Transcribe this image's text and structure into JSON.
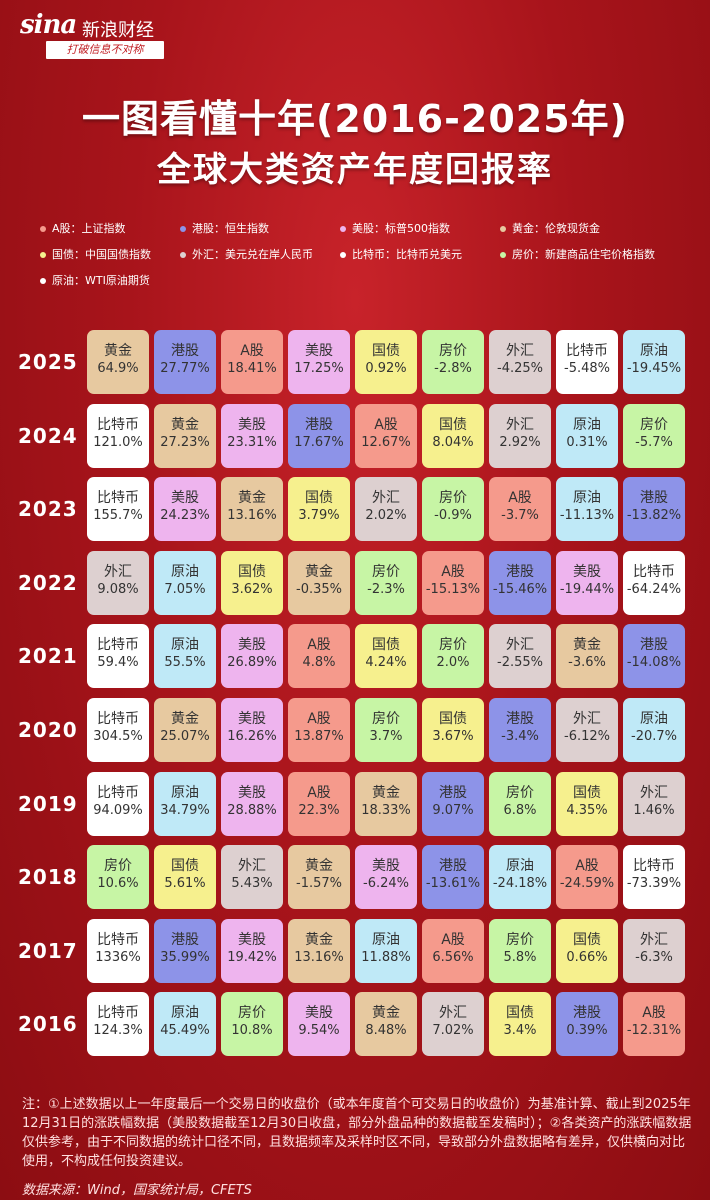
{
  "brand": {
    "mark": "sina",
    "name": "新浪财经",
    "slogan": "打破信息不对称"
  },
  "title": {
    "line1": "一图看懂十年(2016-2025年)",
    "line2": "全球大类资产年度回报率"
  },
  "colors": {
    "A股": "#f59a8c",
    "港股": "#8d93e8",
    "美股": "#eeb4ee",
    "黄金": "#e7c9a0",
    "国债": "#f6f08e",
    "外汇": "#ddd0d0",
    "比特币": "#ffffff",
    "房价": "#c7f5a5",
    "原油": "#bfe9f7"
  },
  "legend": [
    {
      "label": "A股：上证指数",
      "dot": "#f59a8c"
    },
    {
      "label": "港股：恒生指数",
      "dot": "#8d93e8"
    },
    {
      "label": "美股：标普500指数",
      "dot": "#eeb4ee"
    },
    {
      "label": "黄金：伦敦现货金",
      "dot": "#e7c9a0"
    },
    {
      "label": "国债：中国国债指数",
      "dot": "#f6f08e"
    },
    {
      "label": "外汇：美元兑在岸人民币",
      "dot": "#ddd0d0"
    },
    {
      "label": "比特币：比特币兑美元",
      "dot": "#ffffff"
    },
    {
      "label": "房价：新建商品住宅价格指数",
      "dot": "#c7f5a5"
    },
    {
      "label": "原油：WTI原油期货",
      "dot": "#ffffff"
    }
  ],
  "rows": [
    {
      "year": "2025",
      "cells": [
        [
          "黄金",
          "64.9%"
        ],
        [
          "港股",
          "27.77%"
        ],
        [
          "A股",
          "18.41%"
        ],
        [
          "美股",
          "17.25%"
        ],
        [
          "国债",
          "0.92%"
        ],
        [
          "房价",
          "-2.8%"
        ],
        [
          "外汇",
          "-4.25%"
        ],
        [
          "比特币",
          "-5.48%"
        ],
        [
          "原油",
          "-19.45%"
        ]
      ]
    },
    {
      "year": "2024",
      "cells": [
        [
          "比特币",
          "121.0%"
        ],
        [
          "黄金",
          "27.23%"
        ],
        [
          "美股",
          "23.31%"
        ],
        [
          "港股",
          "17.67%"
        ],
        [
          "A股",
          "12.67%"
        ],
        [
          "国债",
          "8.04%"
        ],
        [
          "外汇",
          "2.92%"
        ],
        [
          "原油",
          "0.31%"
        ],
        [
          "房价",
          "-5.7%"
        ]
      ]
    },
    {
      "year": "2023",
      "cells": [
        [
          "比特币",
          "155.7%"
        ],
        [
          "美股",
          "24.23%"
        ],
        [
          "黄金",
          "13.16%"
        ],
        [
          "国债",
          "3.79%"
        ],
        [
          "外汇",
          "2.02%"
        ],
        [
          "房价",
          "-0.9%"
        ],
        [
          "A股",
          "-3.7%"
        ],
        [
          "原油",
          "-11.13%"
        ],
        [
          "港股",
          "-13.82%"
        ]
      ]
    },
    {
      "year": "2022",
      "cells": [
        [
          "外汇",
          "9.08%"
        ],
        [
          "原油",
          "7.05%"
        ],
        [
          "国债",
          "3.62%"
        ],
        [
          "黄金",
          "-0.35%"
        ],
        [
          "房价",
          "-2.3%"
        ],
        [
          "A股",
          "-15.13%"
        ],
        [
          "港股",
          "-15.46%"
        ],
        [
          "美股",
          "-19.44%"
        ],
        [
          "比特币",
          "-64.24%"
        ]
      ]
    },
    {
      "year": "2021",
      "cells": [
        [
          "比特币",
          "59.4%"
        ],
        [
          "原油",
          "55.5%"
        ],
        [
          "美股",
          "26.89%"
        ],
        [
          "A股",
          "4.8%"
        ],
        [
          "国债",
          "4.24%"
        ],
        [
          "房价",
          "2.0%"
        ],
        [
          "外汇",
          "-2.55%"
        ],
        [
          "黄金",
          "-3.6%"
        ],
        [
          "港股",
          "-14.08%"
        ]
      ]
    },
    {
      "year": "2020",
      "cells": [
        [
          "比特币",
          "304.5%"
        ],
        [
          "黄金",
          "25.07%"
        ],
        [
          "美股",
          "16.26%"
        ],
        [
          "A股",
          "13.87%"
        ],
        [
          "房价",
          "3.7%"
        ],
        [
          "国债",
          "3.67%"
        ],
        [
          "港股",
          "-3.4%"
        ],
        [
          "外汇",
          "-6.12%"
        ],
        [
          "原油",
          "-20.7%"
        ]
      ]
    },
    {
      "year": "2019",
      "cells": [
        [
          "比特币",
          "94.09%"
        ],
        [
          "原油",
          "34.79%"
        ],
        [
          "美股",
          "28.88%"
        ],
        [
          "A股",
          "22.3%"
        ],
        [
          "黄金",
          "18.33%"
        ],
        [
          "港股",
          "9.07%"
        ],
        [
          "房价",
          "6.8%"
        ],
        [
          "国债",
          "4.35%"
        ],
        [
          "外汇",
          "1.46%"
        ]
      ]
    },
    {
      "year": "2018",
      "cells": [
        [
          "房价",
          "10.6%"
        ],
        [
          "国债",
          "5.61%"
        ],
        [
          "外汇",
          "5.43%"
        ],
        [
          "黄金",
          "-1.57%"
        ],
        [
          "美股",
          "-6.24%"
        ],
        [
          "港股",
          "-13.61%"
        ],
        [
          "原油",
          "-24.18%"
        ],
        [
          "A股",
          "-24.59%"
        ],
        [
          "比特币",
          "-73.39%"
        ]
      ]
    },
    {
      "year": "2017",
      "cells": [
        [
          "比特币",
          "1336%"
        ],
        [
          "港股",
          "35.99%"
        ],
        [
          "美股",
          "19.42%"
        ],
        [
          "黄金",
          "13.16%"
        ],
        [
          "原油",
          "11.88%"
        ],
        [
          "A股",
          "6.56%"
        ],
        [
          "房价",
          "5.8%"
        ],
        [
          "国债",
          "0.66%"
        ],
        [
          "外汇",
          "-6.3%"
        ]
      ]
    },
    {
      "year": "2016",
      "cells": [
        [
          "比特币",
          "124.3%"
        ],
        [
          "原油",
          "45.49%"
        ],
        [
          "房价",
          "10.8%"
        ],
        [
          "美股",
          "9.54%"
        ],
        [
          "黄金",
          "8.48%"
        ],
        [
          "外汇",
          "7.02%"
        ],
        [
          "国债",
          "3.4%"
        ],
        [
          "港股",
          "0.39%"
        ],
        [
          "A股",
          "-12.31%"
        ]
      ]
    }
  ],
  "notes": "注：①上述数据以上一年度最后一个交易日的收盘价（或本年度首个可交易日的收盘价）为基准计算、截止到2025年12月31日的涨跌幅数据（美股数据截至12月30日收盘，部分外盘品种的数据截至发稿时）；②各类资产的涨跌幅数据仅供参考，由于不同数据的统计口径不同，且数据频率及采样时区不同，导致部分外盘数据略有差异，仅供横向对比使用，不构成任何投资建议。",
  "source": "数据来源：Wind，国家统计局，CFETS"
}
